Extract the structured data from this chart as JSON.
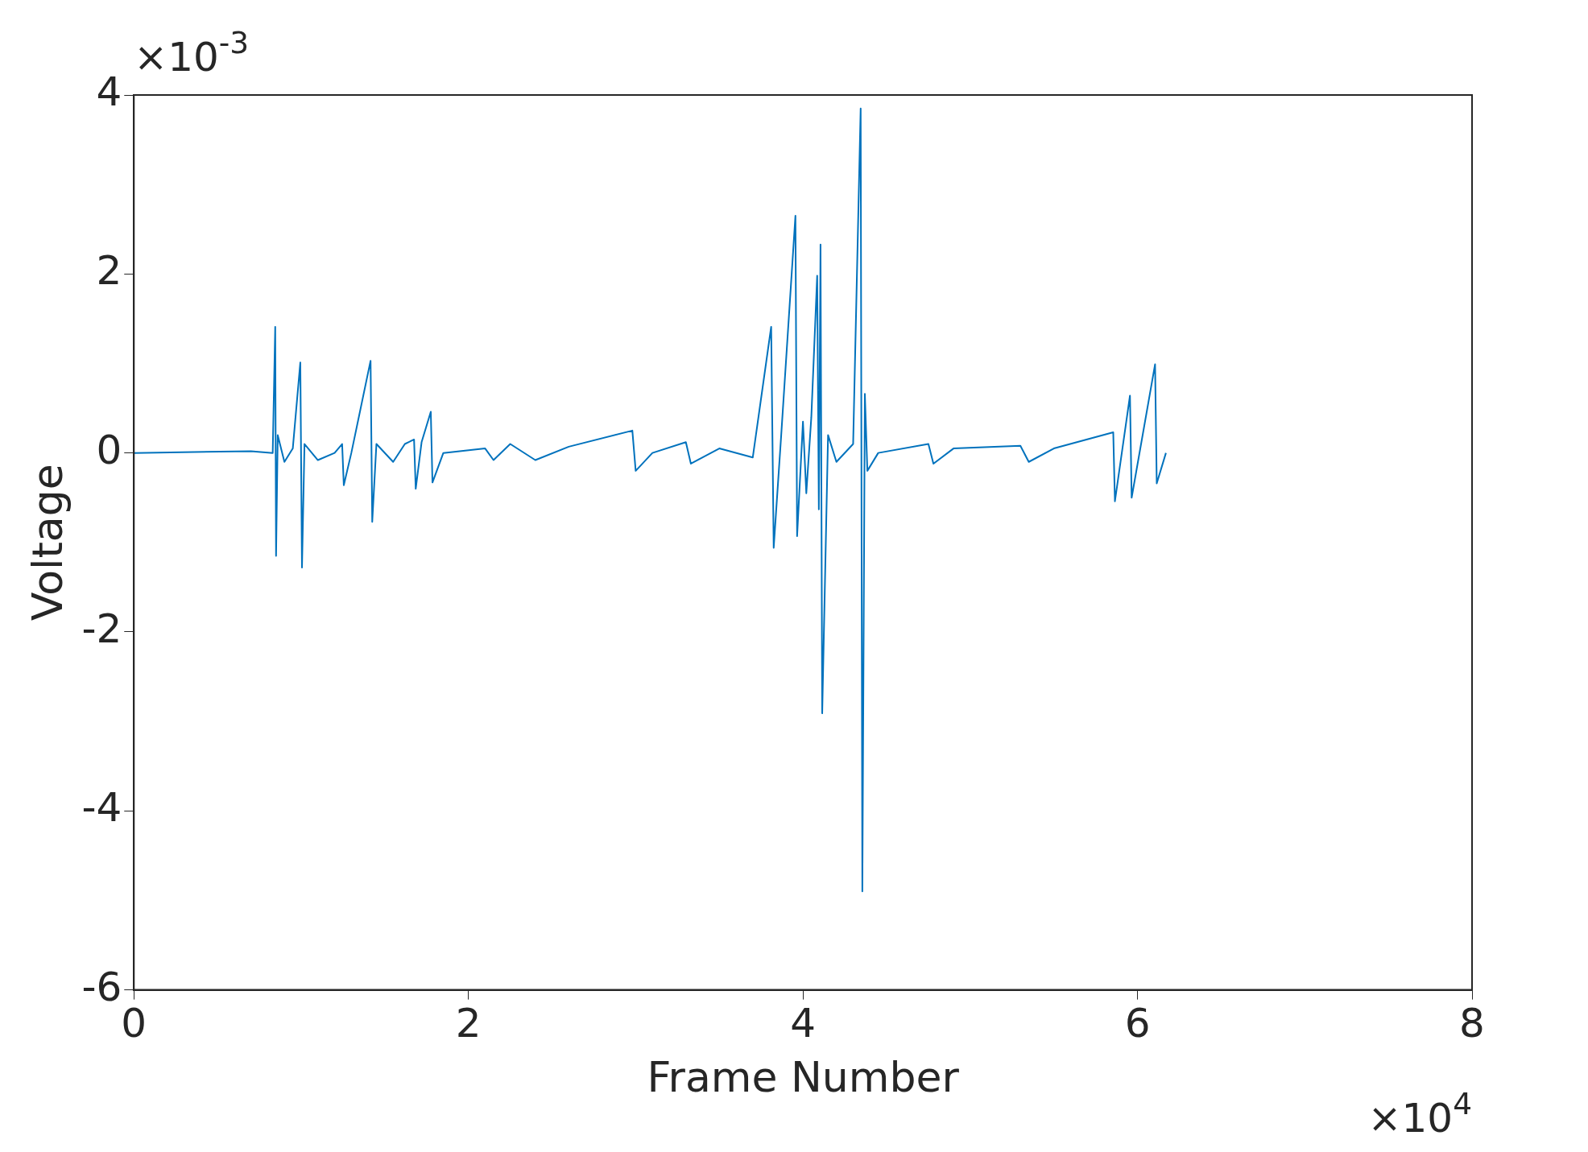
{
  "chart_data": {
    "type": "line",
    "xlabel": "Frame Number",
    "ylabel": "Voltage",
    "annotations": [
      "×10$^{-3}$",
      "×10$^{4}$"
    ],
    "xlim": [
      0,
      8
    ],
    "xticks": [
      0,
      2,
      4,
      6,
      8
    ],
    "ylim": [
      -6,
      4
    ],
    "yticks": [
      -6,
      -4,
      -2,
      0,
      2,
      4
    ],
    "grid": false,
    "legend": false,
    "marker": "none",
    "line_style": "solid",
    "series": [
      {
        "color": "#0072bd",
        "x": [
          0,
          0.7,
          0.83,
          0.845,
          0.85,
          0.86,
          0.9,
          0.95,
          0.995,
          1.005,
          1.02,
          1.1,
          1.2,
          1.245,
          1.255,
          1.3,
          1.415,
          1.425,
          1.45,
          1.55,
          1.62,
          1.675,
          1.685,
          1.72,
          1.775,
          1.785,
          1.85,
          2.1,
          2.15,
          2.25,
          2.4,
          2.6,
          2.98,
          3.0,
          3.1,
          3.3,
          3.33,
          3.5,
          3.7,
          3.81,
          3.825,
          3.87,
          3.955,
          3.965,
          4.0,
          4.02,
          4.05,
          4.085,
          4.095,
          4.105,
          4.115,
          4.15,
          4.2,
          4.3,
          4.345,
          4.355,
          4.37,
          4.385,
          4.45,
          4.75,
          4.78,
          4.9,
          5.3,
          5.35,
          5.5,
          5.855,
          5.865,
          5.955,
          5.965,
          6.105,
          6.115,
          6.17
        ],
        "values": [
          0,
          0.02,
          0,
          1.41,
          -1.15,
          0.2,
          -0.1,
          0.05,
          1.01,
          -1.28,
          0.1,
          -0.08,
          0,
          0.1,
          -0.36,
          0,
          1.03,
          -0.77,
          0.1,
          -0.1,
          0.1,
          0.15,
          -0.4,
          0.12,
          0.46,
          -0.33,
          0,
          0.05,
          -0.08,
          0.1,
          -0.08,
          0.07,
          0.25,
          -0.2,
          0,
          0.12,
          -0.12,
          0.05,
          -0.05,
          1.41,
          -1.06,
          0.2,
          2.65,
          -0.93,
          0.35,
          -0.45,
          0.4,
          1.98,
          -0.63,
          2.33,
          -2.91,
          0.2,
          -0.1,
          0.1,
          3.85,
          -4.9,
          0.66,
          -0.2,
          0,
          0.1,
          -0.12,
          0.05,
          0.08,
          -0.1,
          0.05,
          0.23,
          -0.54,
          0.64,
          -0.5,
          0.99,
          -0.34,
          0
        ]
      }
    ]
  }
}
